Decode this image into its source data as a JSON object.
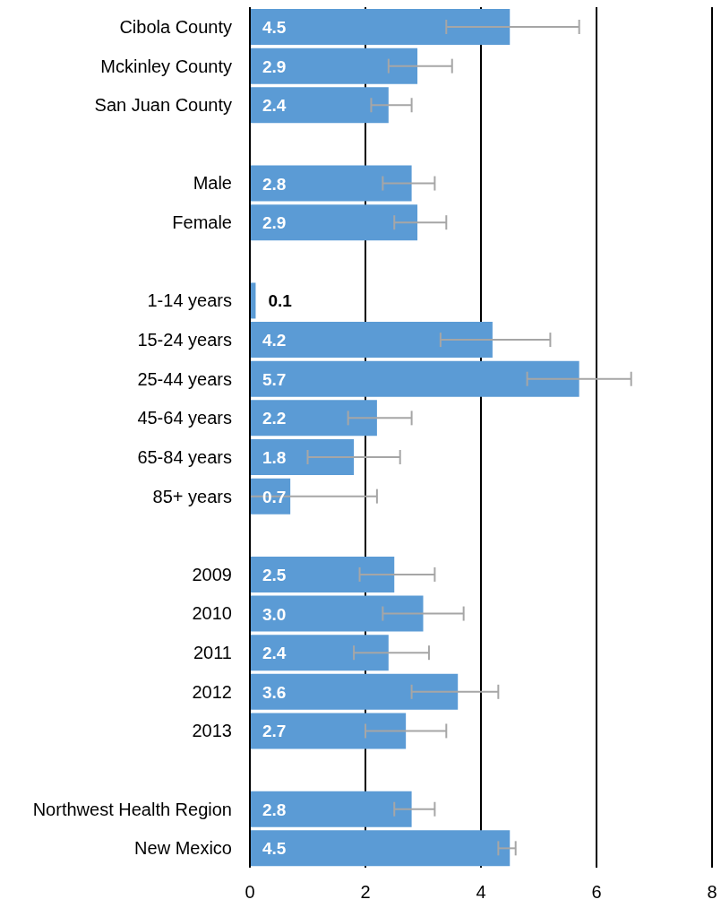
{
  "chart_data": {
    "type": "bar",
    "orientation": "horizontal",
    "categories": [
      "Cibola County",
      "Mckinley County",
      "San Juan County",
      null,
      "Male",
      "Female",
      null,
      "1-14 years",
      "15-24 years",
      "25-44 years",
      "45-64 years",
      "65-84 years",
      "85+ years",
      null,
      "2009",
      "2010",
      "2011",
      "2012",
      "2013",
      null,
      "Northwest Health Region",
      "New Mexico"
    ],
    "values": [
      4.5,
      2.9,
      2.4,
      null,
      2.8,
      2.9,
      null,
      0.1,
      4.2,
      5.7,
      2.2,
      1.8,
      0.7,
      null,
      2.5,
      3.0,
      2.4,
      3.6,
      2.7,
      null,
      2.8,
      4.5
    ],
    "value_labels": [
      "4.5",
      "2.9",
      "2.4",
      null,
      "2.8",
      "2.9",
      null,
      "0.1",
      "4.2",
      "5.7",
      "2.2",
      "1.8",
      "0.7",
      null,
      "2.5",
      "3.0",
      "2.4",
      "3.6",
      "2.7",
      null,
      "2.8",
      "4.5"
    ],
    "errors": [
      [
        3.4,
        5.7
      ],
      [
        2.4,
        3.5
      ],
      [
        2.1,
        2.8
      ],
      null,
      [
        2.3,
        3.2
      ],
      [
        2.5,
        3.4
      ],
      null,
      null,
      [
        3.3,
        5.2
      ],
      [
        4.8,
        6.6
      ],
      [
        1.7,
        2.8
      ],
      [
        1.0,
        2.6
      ],
      [
        0,
        2.2
      ],
      null,
      [
        1.9,
        3.2
      ],
      [
        2.3,
        3.7
      ],
      [
        1.8,
        3.1
      ],
      [
        2.8,
        4.3
      ],
      [
        2.0,
        3.4
      ],
      null,
      [
        2.5,
        3.2
      ],
      [
        4.3,
        4.6
      ]
    ],
    "color": "#5b9bd5",
    "xlim": [
      0,
      8
    ],
    "xticks": [
      0,
      2,
      4,
      6,
      8
    ],
    "grid": "x"
  }
}
